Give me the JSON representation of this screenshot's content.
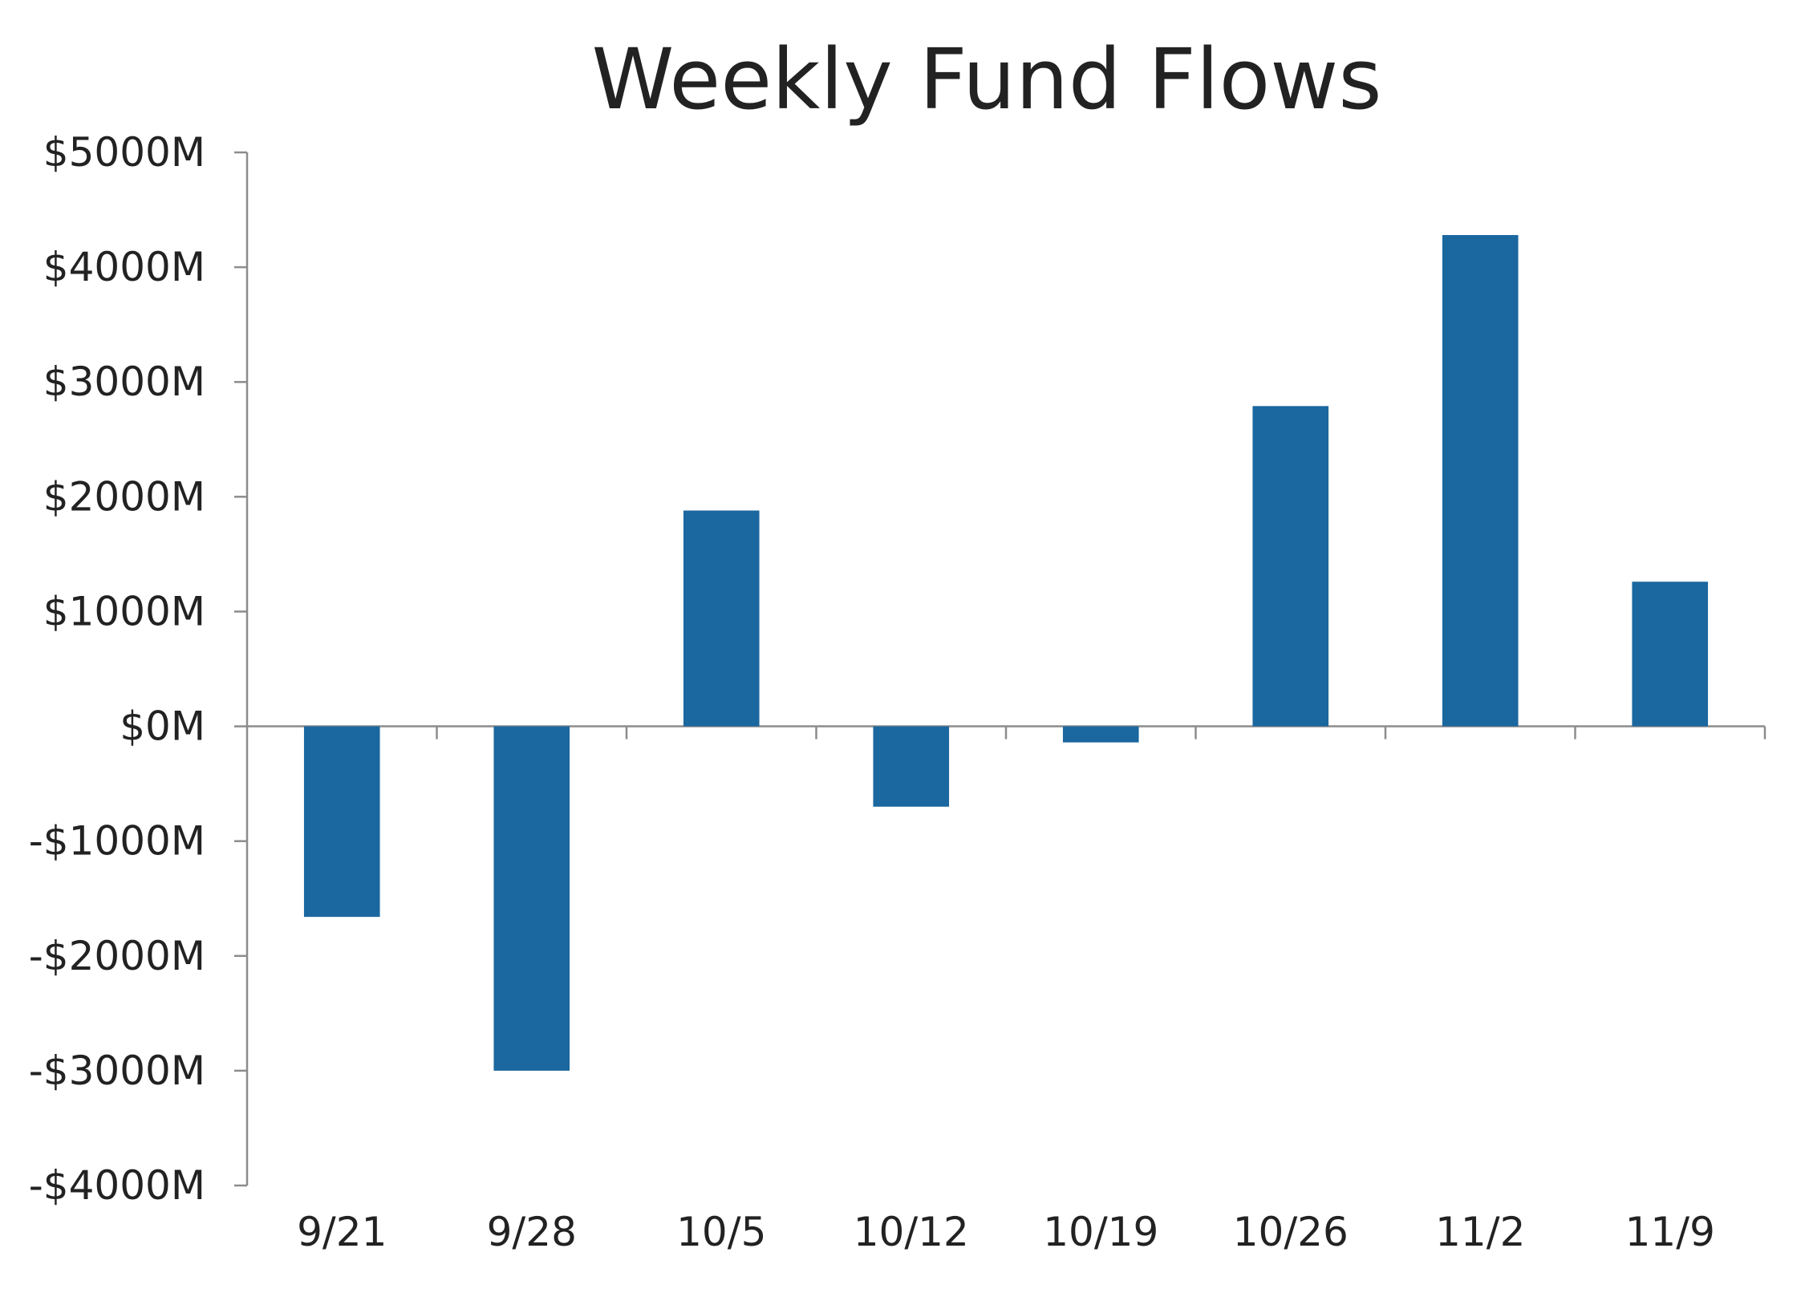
{
  "chart_data": {
    "type": "bar",
    "title": "Weekly Fund Flows",
    "xlabel": "",
    "ylabel": "",
    "categories": [
      "9/21",
      "9/28",
      "10/5",
      "10/12",
      "10/19",
      "10/26",
      "11/2",
      "11/9"
    ],
    "values": [
      -1660,
      -3000,
      1880,
      -700,
      -140,
      2790,
      4280,
      1260
    ],
    "ylim": [
      -4000,
      5000
    ],
    "yticks": [
      5000,
      4000,
      3000,
      2000,
      1000,
      0,
      -1000,
      -2000,
      -3000,
      -4000
    ],
    "ytick_labels": [
      "$5000M",
      "$4000M",
      "$3000M",
      "$2000M",
      "$1000M",
      "$0M",
      "-$1000M",
      "-$2000M",
      "-$3000M",
      "-$4000M"
    ],
    "grid": false,
    "legend": "none",
    "colors": {
      "bar": "#1b679f",
      "axis": "#8c8c8c",
      "text": "#222222"
    }
  }
}
